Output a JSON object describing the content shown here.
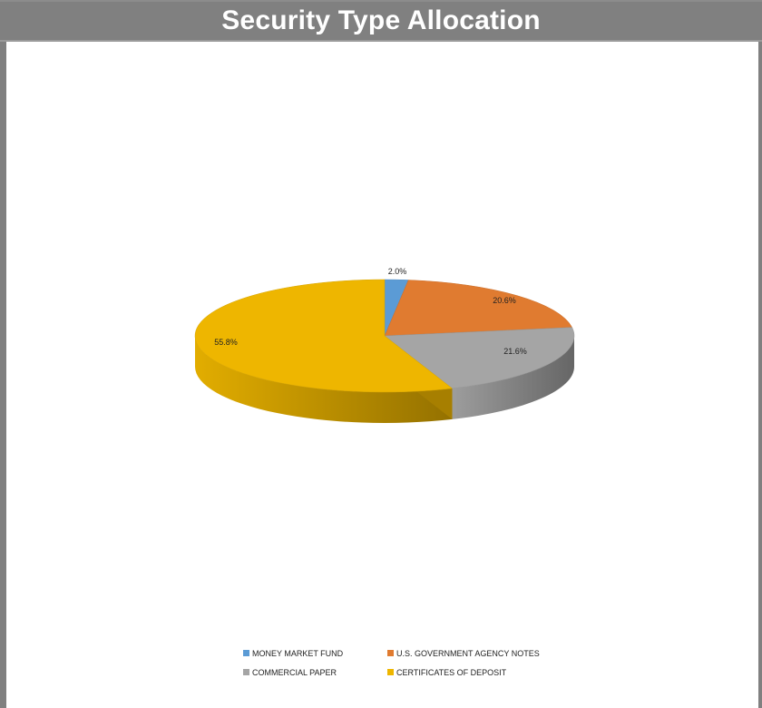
{
  "page": {
    "title": "Security Type Allocation"
  },
  "chart_data": {
    "type": "pie",
    "title": "Security Type Allocation",
    "legend_position": "bottom",
    "categories": [
      "MONEY MARKET FUND",
      "U.S. GOVERNMENT AGENCY NOTES",
      "COMMERCIAL PAPER",
      "CERTIFICATES OF DEPOSIT"
    ],
    "values": [
      2.0,
      20.6,
      21.6,
      55.8
    ],
    "labels": [
      "2.0%",
      "20.6%",
      "21.6%",
      "55.8%"
    ],
    "colors": [
      "#5b9bd5",
      "#e07b30",
      "#a5a5a5",
      "#eeb600"
    ],
    "three_d": true
  }
}
